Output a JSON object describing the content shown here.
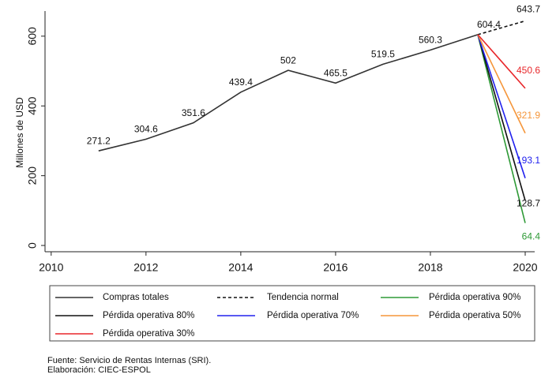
{
  "chart_data": {
    "type": "line",
    "ylabel": "Millones de USD",
    "x": [
      2011,
      2012,
      2013,
      2014,
      2015,
      2016,
      2017,
      2018,
      2019,
      2020
    ],
    "series": [
      {
        "name": "Compras totales",
        "color": "#333333",
        "dash": false,
        "values": [
          271.2,
          304.6,
          351.6,
          439.4,
          502,
          465.5,
          519.5,
          560.3,
          604.4,
          null
        ]
      },
      {
        "name": "Tendencia normal",
        "color": "#111111",
        "dash": true,
        "values": [
          null,
          null,
          null,
          null,
          null,
          null,
          null,
          null,
          604.4,
          643.7
        ]
      },
      {
        "name": "Pérdida operativa 90%",
        "color": "#2e9a36",
        "dash": false,
        "values": [
          null,
          null,
          null,
          null,
          null,
          null,
          null,
          null,
          604.4,
          64.4
        ]
      },
      {
        "name": "Pérdida operativa 80%",
        "color": "#111111",
        "dash": false,
        "values": [
          null,
          null,
          null,
          null,
          null,
          null,
          null,
          null,
          604.4,
          128.7
        ]
      },
      {
        "name": "Pérdida operativa 70%",
        "color": "#2222ee",
        "dash": false,
        "values": [
          null,
          null,
          null,
          null,
          null,
          null,
          null,
          null,
          604.4,
          193.1
        ]
      },
      {
        "name": "Pérdida operativa 50%",
        "color": "#f5963a",
        "dash": false,
        "values": [
          null,
          null,
          null,
          null,
          null,
          null,
          null,
          null,
          604.4,
          321.9
        ]
      },
      {
        "name": "Pérdida operativa 30%",
        "color": "#e8262a",
        "dash": false,
        "values": [
          null,
          null,
          null,
          null,
          null,
          null,
          null,
          null,
          604.4,
          450.6
        ]
      }
    ],
    "xlim": [
      2009.87,
      2020.2
    ],
    "xticks": [
      2010,
      2012,
      2014,
      2016,
      2018,
      2020
    ],
    "ylim": [
      -18,
      672
    ],
    "yticks": [
      0,
      200,
      400,
      600
    ],
    "grid": false,
    "legend": "bottom",
    "notes": [
      "Fuente: Servicio de Rentas Internas (SRI).",
      "Elaboración: CIEC-ESPOL"
    ]
  }
}
